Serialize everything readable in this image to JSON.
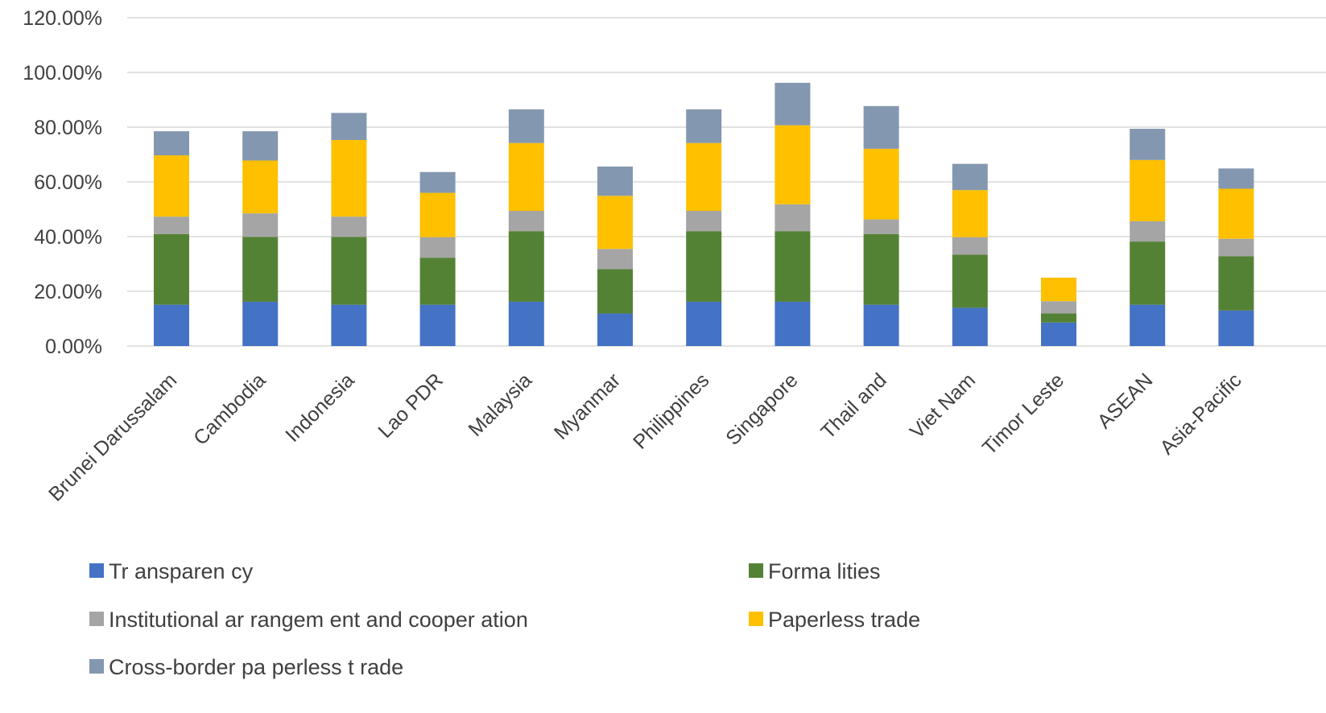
{
  "chart_data": {
    "type": "bar",
    "stacked": true,
    "categories": [
      "Brunei Darussalam",
      "Cambodia",
      "Indonesia",
      "Lao PDR",
      "Malaysia",
      "Myanmar",
      "Philippines",
      "Singapore",
      "Thail and",
      "Viet Nam",
      "Timor Leste",
      "ASEAN",
      "Asia-Pacific"
    ],
    "series": [
      {
        "name": "Tr ansparen cy",
        "color": "#4472c4",
        "values": [
          15.1,
          16.2,
          15.1,
          15.1,
          16.2,
          11.9,
          16.2,
          16.2,
          15.1,
          14.0,
          8.6,
          15.1,
          13.0
        ]
      },
      {
        "name": "Forma lities",
        "color": "#548235",
        "values": [
          25.8,
          23.7,
          24.8,
          17.2,
          25.8,
          16.2,
          25.8,
          25.8,
          25.8,
          19.4,
          3.3,
          23.1,
          19.8
        ]
      },
      {
        "name": "Institutional ar rangem ent and cooper ation",
        "color": "#a5a5a5",
        "values": [
          6.4,
          8.6,
          7.4,
          7.5,
          7.4,
          7.4,
          7.4,
          9.8,
          5.4,
          6.4,
          4.5,
          7.4,
          6.4
        ]
      },
      {
        "name": "Paperless trade",
        "color": "#ffc000",
        "values": [
          22.4,
          19.3,
          28.0,
          16.2,
          24.8,
          19.4,
          24.8,
          28.9,
          25.8,
          17.2,
          8.6,
          22.4,
          18.3
        ]
      },
      {
        "name": "Cross-border pa perless t rade",
        "color": "#8497b0",
        "values": [
          8.8,
          10.7,
          9.9,
          7.6,
          12.3,
          10.7,
          12.3,
          15.5,
          15.6,
          9.6,
          0,
          11.4,
          7.4
        ]
      }
    ],
    "ylim": [
      0,
      120
    ],
    "yticks": [
      "0.00%",
      "20.00%",
      "40.00%",
      "60.00%",
      "80.00%",
      "100.00%",
      "120.00%"
    ],
    "grid": true,
    "legend_position": "bottom",
    "title": "",
    "xlabel": "",
    "ylabel": ""
  }
}
